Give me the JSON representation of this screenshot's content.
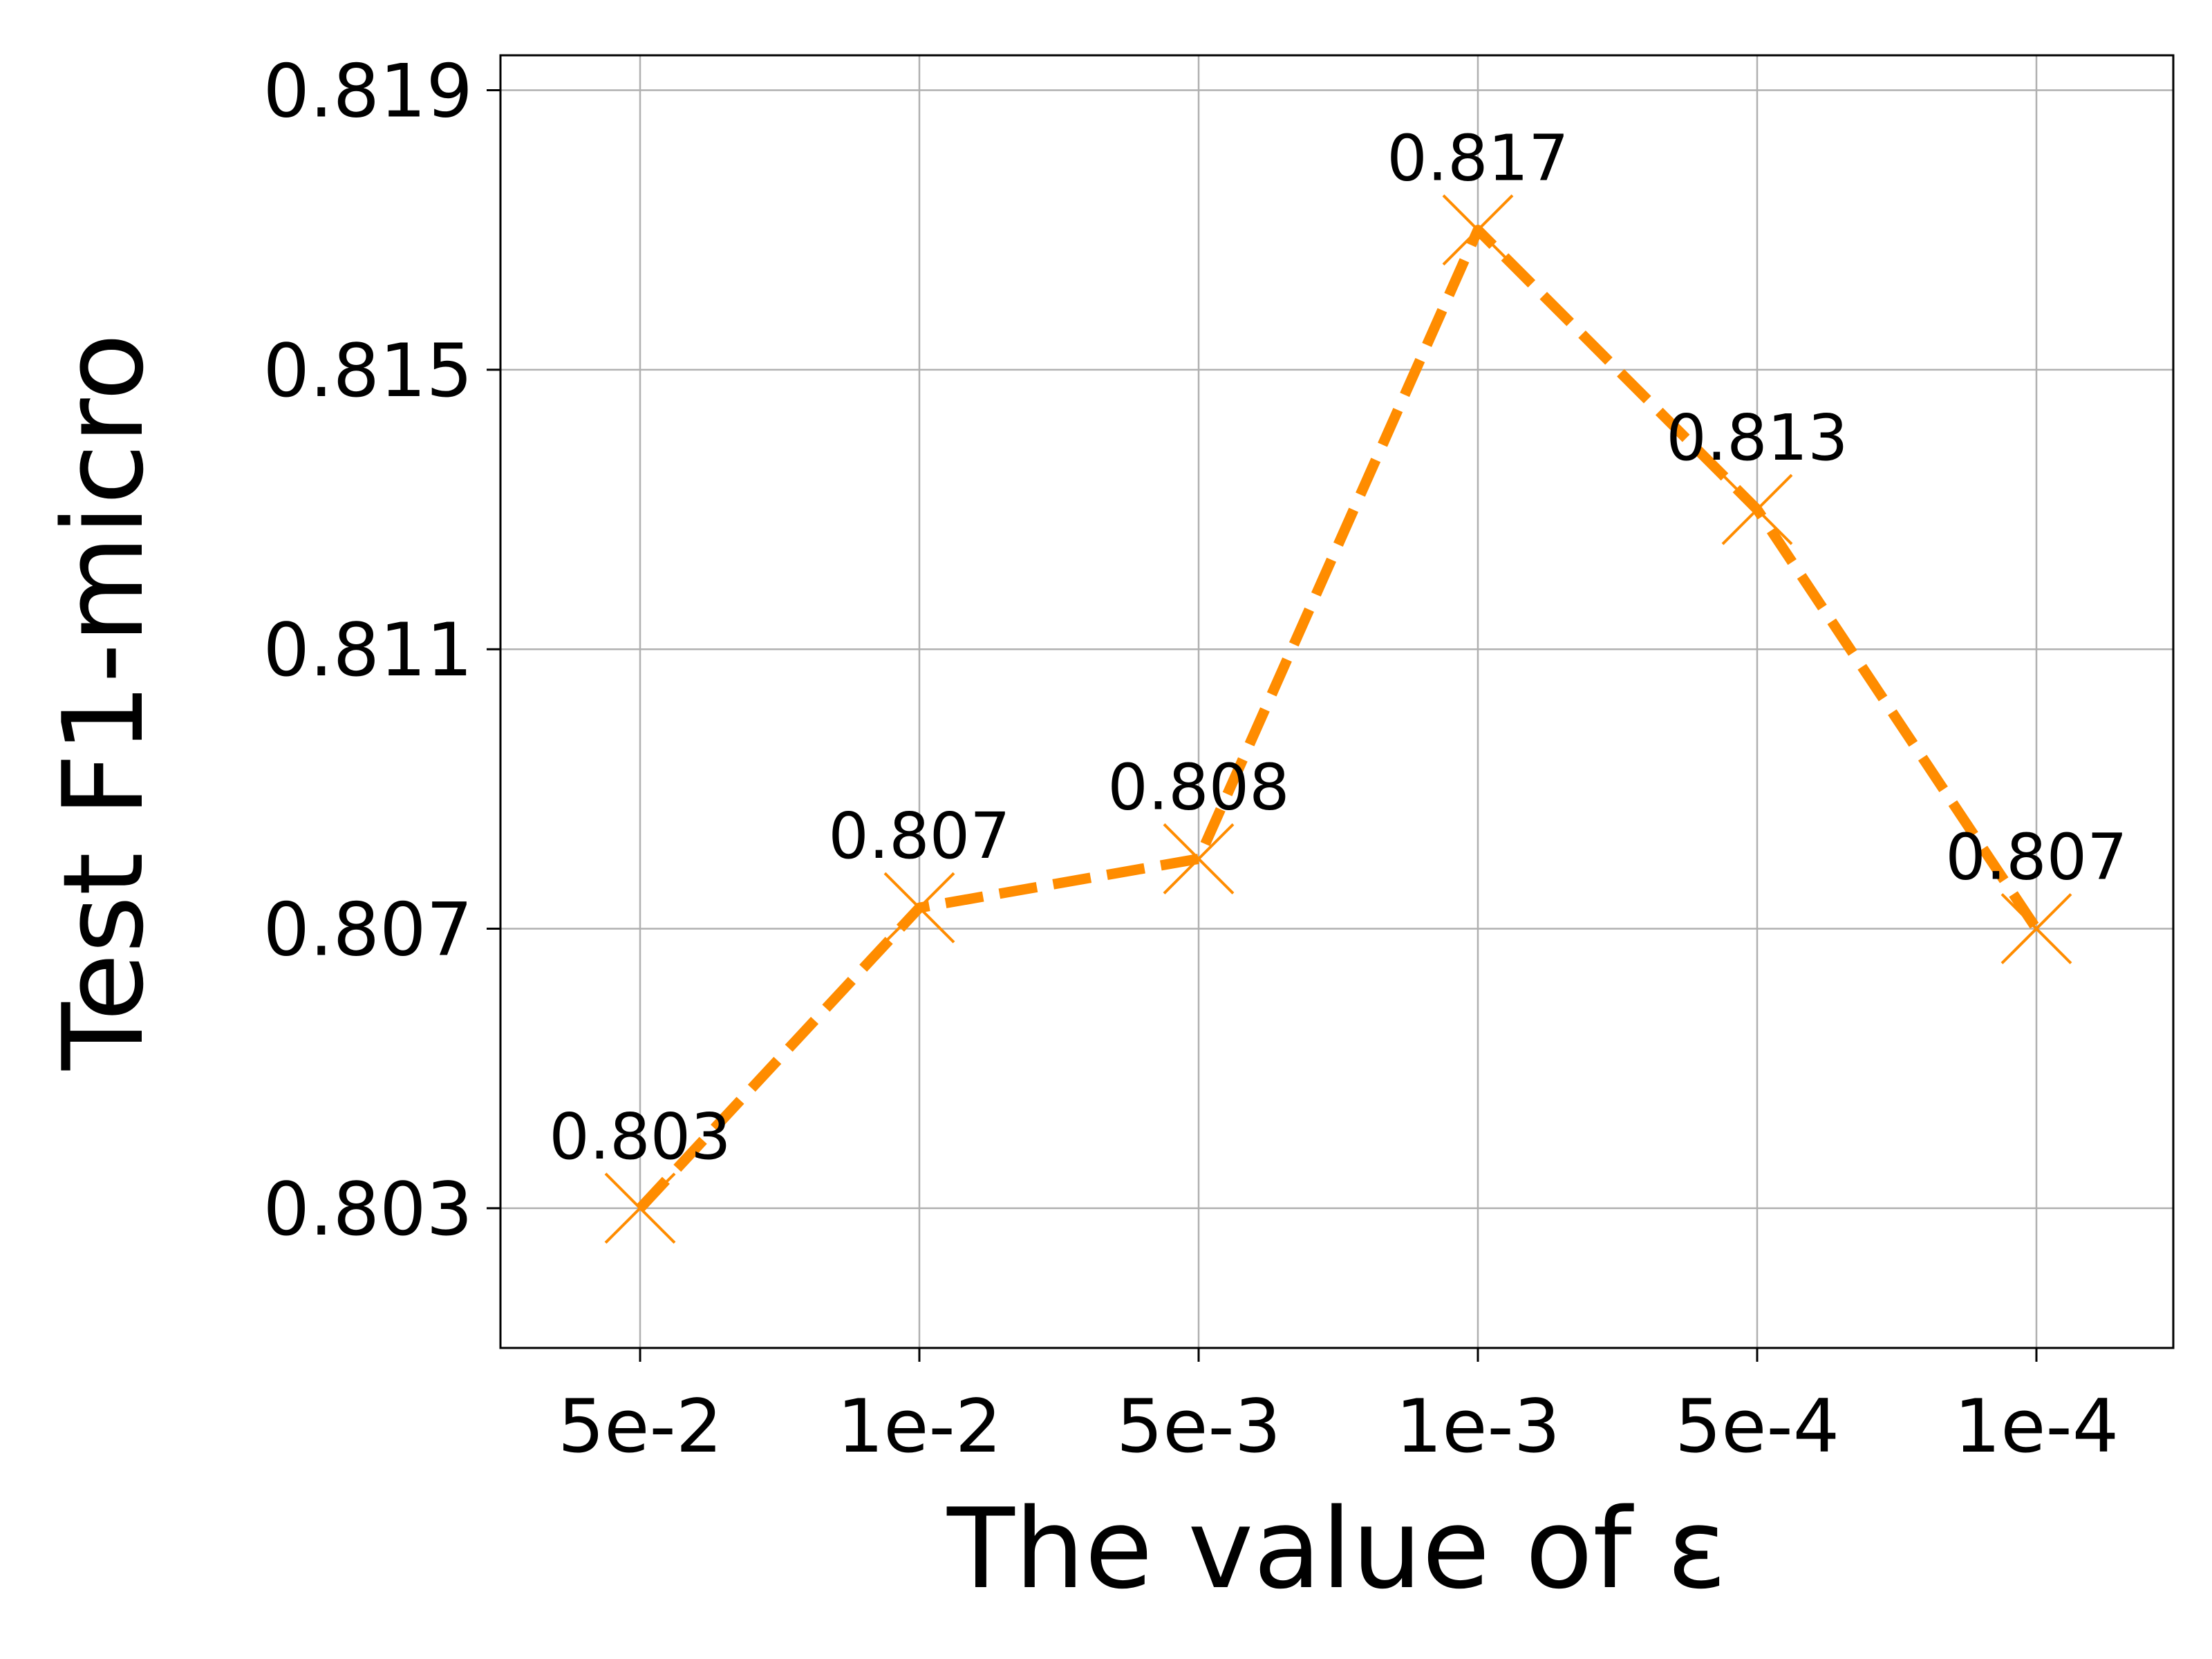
{
  "chart_data": {
    "type": "line",
    "title": "",
    "xlabel": "The value of ε",
    "ylabel": "Test F1-micro",
    "categories": [
      "5e-2",
      "1e-2",
      "5e-3",
      "1e-3",
      "5e-4",
      "1e-4"
    ],
    "values": [
      0.803,
      0.8073,
      0.808,
      0.817,
      0.813,
      0.807
    ],
    "data_labels": [
      "0.803",
      "0.807",
      "0.808",
      "0.817",
      "0.813",
      "0.807"
    ],
    "yticks": [
      0.803,
      0.807,
      0.811,
      0.815,
      0.819
    ],
    "ytick_labels": [
      "0.803",
      "0.807",
      "0.811",
      "0.815",
      "0.819"
    ],
    "ylim": [
      0.801,
      0.8195
    ],
    "grid": true,
    "line_style": "dashed",
    "marker": "x",
    "color": "#ff8c00"
  }
}
